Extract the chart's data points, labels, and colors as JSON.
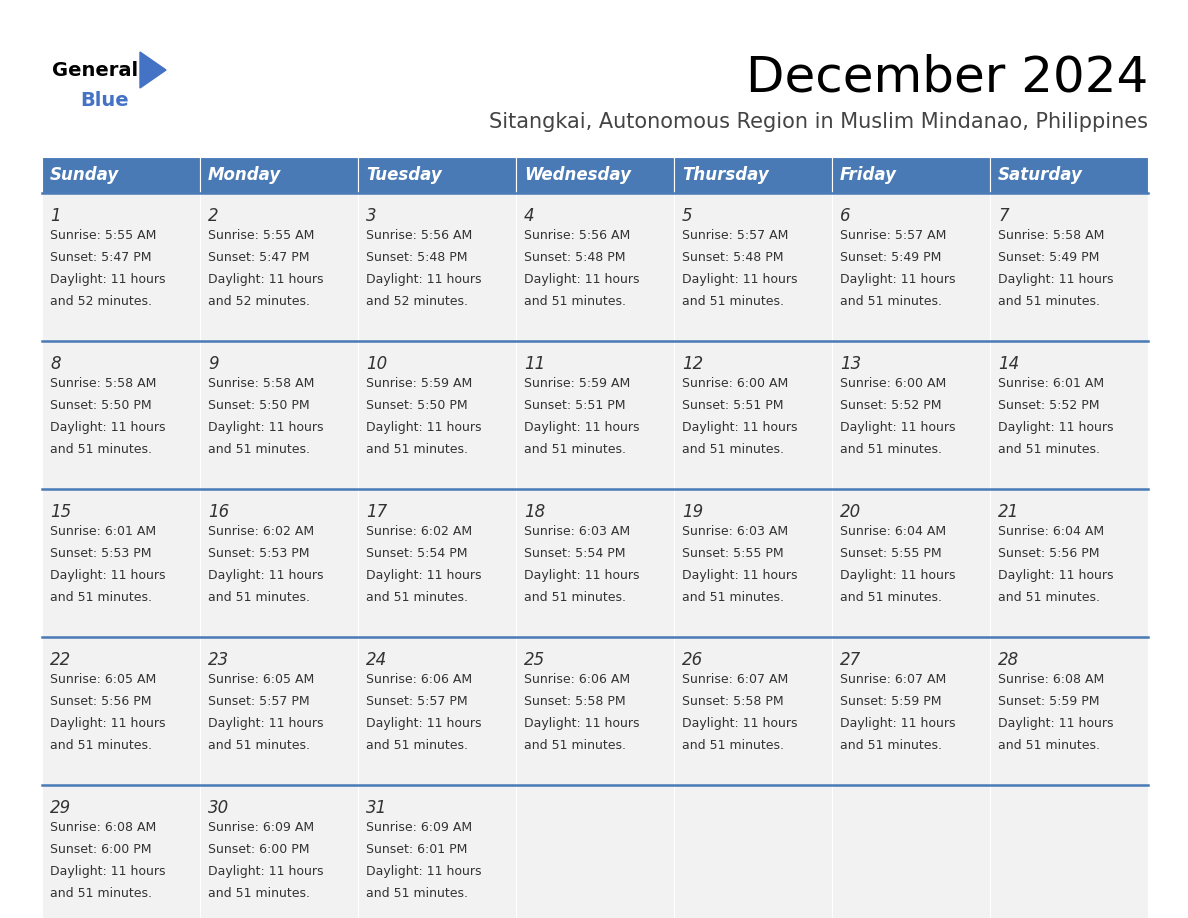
{
  "title": "December 2024",
  "subtitle": "Sitangkai, Autonomous Region in Muslim Mindanao, Philippines",
  "header_color": "#4a7ab5",
  "header_text_color": "#FFFFFF",
  "cell_bg_color": "#F2F2F2",
  "border_color": "#4a7ab5",
  "text_color": "#333333",
  "days_of_week": [
    "Sunday",
    "Monday",
    "Tuesday",
    "Wednesday",
    "Thursday",
    "Friday",
    "Saturday"
  ],
  "calendar_data": [
    [
      {
        "day": 1,
        "sunrise": "5:55 AM",
        "sunset": "5:47 PM",
        "daylight_hours": 11,
        "daylight_minutes": 52
      },
      {
        "day": 2,
        "sunrise": "5:55 AM",
        "sunset": "5:47 PM",
        "daylight_hours": 11,
        "daylight_minutes": 52
      },
      {
        "day": 3,
        "sunrise": "5:56 AM",
        "sunset": "5:48 PM",
        "daylight_hours": 11,
        "daylight_minutes": 52
      },
      {
        "day": 4,
        "sunrise": "5:56 AM",
        "sunset": "5:48 PM",
        "daylight_hours": 11,
        "daylight_minutes": 51
      },
      {
        "day": 5,
        "sunrise": "5:57 AM",
        "sunset": "5:48 PM",
        "daylight_hours": 11,
        "daylight_minutes": 51
      },
      {
        "day": 6,
        "sunrise": "5:57 AM",
        "sunset": "5:49 PM",
        "daylight_hours": 11,
        "daylight_minutes": 51
      },
      {
        "day": 7,
        "sunrise": "5:58 AM",
        "sunset": "5:49 PM",
        "daylight_hours": 11,
        "daylight_minutes": 51
      }
    ],
    [
      {
        "day": 8,
        "sunrise": "5:58 AM",
        "sunset": "5:50 PM",
        "daylight_hours": 11,
        "daylight_minutes": 51
      },
      {
        "day": 9,
        "sunrise": "5:58 AM",
        "sunset": "5:50 PM",
        "daylight_hours": 11,
        "daylight_minutes": 51
      },
      {
        "day": 10,
        "sunrise": "5:59 AM",
        "sunset": "5:50 PM",
        "daylight_hours": 11,
        "daylight_minutes": 51
      },
      {
        "day": 11,
        "sunrise": "5:59 AM",
        "sunset": "5:51 PM",
        "daylight_hours": 11,
        "daylight_minutes": 51
      },
      {
        "day": 12,
        "sunrise": "6:00 AM",
        "sunset": "5:51 PM",
        "daylight_hours": 11,
        "daylight_minutes": 51
      },
      {
        "day": 13,
        "sunrise": "6:00 AM",
        "sunset": "5:52 PM",
        "daylight_hours": 11,
        "daylight_minutes": 51
      },
      {
        "day": 14,
        "sunrise": "6:01 AM",
        "sunset": "5:52 PM",
        "daylight_hours": 11,
        "daylight_minutes": 51
      }
    ],
    [
      {
        "day": 15,
        "sunrise": "6:01 AM",
        "sunset": "5:53 PM",
        "daylight_hours": 11,
        "daylight_minutes": 51
      },
      {
        "day": 16,
        "sunrise": "6:02 AM",
        "sunset": "5:53 PM",
        "daylight_hours": 11,
        "daylight_minutes": 51
      },
      {
        "day": 17,
        "sunrise": "6:02 AM",
        "sunset": "5:54 PM",
        "daylight_hours": 11,
        "daylight_minutes": 51
      },
      {
        "day": 18,
        "sunrise": "6:03 AM",
        "sunset": "5:54 PM",
        "daylight_hours": 11,
        "daylight_minutes": 51
      },
      {
        "day": 19,
        "sunrise": "6:03 AM",
        "sunset": "5:55 PM",
        "daylight_hours": 11,
        "daylight_minutes": 51
      },
      {
        "day": 20,
        "sunrise": "6:04 AM",
        "sunset": "5:55 PM",
        "daylight_hours": 11,
        "daylight_minutes": 51
      },
      {
        "day": 21,
        "sunrise": "6:04 AM",
        "sunset": "5:56 PM",
        "daylight_hours": 11,
        "daylight_minutes": 51
      }
    ],
    [
      {
        "day": 22,
        "sunrise": "6:05 AM",
        "sunset": "5:56 PM",
        "daylight_hours": 11,
        "daylight_minutes": 51
      },
      {
        "day": 23,
        "sunrise": "6:05 AM",
        "sunset": "5:57 PM",
        "daylight_hours": 11,
        "daylight_minutes": 51
      },
      {
        "day": 24,
        "sunrise": "6:06 AM",
        "sunset": "5:57 PM",
        "daylight_hours": 11,
        "daylight_minutes": 51
      },
      {
        "day": 25,
        "sunrise": "6:06 AM",
        "sunset": "5:58 PM",
        "daylight_hours": 11,
        "daylight_minutes": 51
      },
      {
        "day": 26,
        "sunrise": "6:07 AM",
        "sunset": "5:58 PM",
        "daylight_hours": 11,
        "daylight_minutes": 51
      },
      {
        "day": 27,
        "sunrise": "6:07 AM",
        "sunset": "5:59 PM",
        "daylight_hours": 11,
        "daylight_minutes": 51
      },
      {
        "day": 28,
        "sunrise": "6:08 AM",
        "sunset": "5:59 PM",
        "daylight_hours": 11,
        "daylight_minutes": 51
      }
    ],
    [
      {
        "day": 29,
        "sunrise": "6:08 AM",
        "sunset": "6:00 PM",
        "daylight_hours": 11,
        "daylight_minutes": 51
      },
      {
        "day": 30,
        "sunrise": "6:09 AM",
        "sunset": "6:00 PM",
        "daylight_hours": 11,
        "daylight_minutes": 51
      },
      {
        "day": 31,
        "sunrise": "6:09 AM",
        "sunset": "6:01 PM",
        "daylight_hours": 11,
        "daylight_minutes": 51
      },
      null,
      null,
      null,
      null
    ]
  ],
  "logo_triangle_color": "#4472C4",
  "logo_blue_color": "#4472C4",
  "title_fontsize": 36,
  "subtitle_fontsize": 15,
  "header_fontsize": 12,
  "day_num_fontsize": 12,
  "cell_fontsize": 9
}
